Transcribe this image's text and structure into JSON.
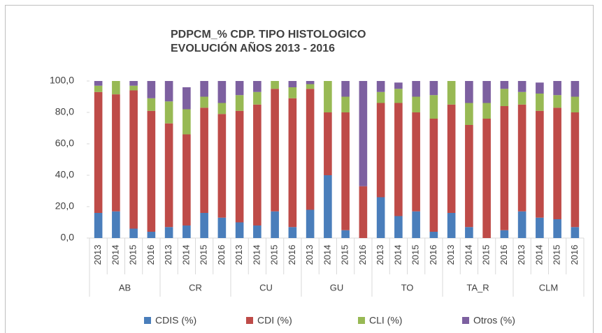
{
  "chart_data": {
    "type": "stacked_bar",
    "title_lines": [
      "PDPCM_% CDP. TIPO HISTOLOGICO",
      "EVOLUCIÓN AÑOS 2013 - 2016"
    ],
    "categories": [
      "2013",
      "2014",
      "2015",
      "2016",
      "2013",
      "2014",
      "2015",
      "2016",
      "2013",
      "2014",
      "2015",
      "2016",
      "2013",
      "2014",
      "2015",
      "2016",
      "2013",
      "2014",
      "2015",
      "2016",
      "2013",
      "2014",
      "2015",
      "2016",
      "2013",
      "2014",
      "2015",
      "2016"
    ],
    "groups": [
      "AB",
      "CR",
      "CU",
      "GU",
      "TO",
      "TA_R",
      "CLM"
    ],
    "series": [
      {
        "name": "CDIS (%)",
        "color": "#4a7ebb",
        "values": [
          16,
          17,
          6,
          4,
          7,
          8,
          16,
          13,
          10,
          8,
          17,
          7,
          18,
          40,
          5,
          0,
          26,
          14,
          17,
          4,
          16,
          7,
          0,
          5,
          17,
          13,
          12,
          7
        ]
      },
      {
        "name": "CDI (%)",
        "color": "#be4b48",
        "values": [
          77,
          74.5,
          88,
          77,
          66,
          58,
          67,
          66,
          71,
          77,
          78,
          82,
          77,
          40,
          75,
          33,
          60,
          72,
          63,
          72,
          69,
          65,
          76,
          79,
          68,
          68,
          71,
          73
        ]
      },
      {
        "name": "CLI (%)",
        "color": "#98b954",
        "values": [
          4,
          8.5,
          3,
          8,
          14,
          16,
          7,
          7,
          10,
          8,
          5,
          7,
          3,
          20,
          10,
          0,
          7,
          9,
          10,
          15,
          15,
          14,
          10,
          11,
          8,
          11,
          8,
          10
        ]
      },
      {
        "name": "Otros (%)",
        "color": "#7d60a0",
        "values": [
          3,
          0,
          3,
          11,
          13,
          14,
          10,
          14,
          9,
          7,
          0,
          4,
          2,
          0,
          10,
          67,
          7,
          4,
          10,
          9,
          0,
          14,
          14,
          5,
          7,
          7,
          9,
          10
        ]
      }
    ],
    "ylim": [
      0,
      100
    ],
    "yticks": [
      {
        "value": 0,
        "label": "0,0"
      },
      {
        "value": 20,
        "label": "20,0"
      },
      {
        "value": 40,
        "label": "40,0"
      },
      {
        "value": 60,
        "label": "60,0"
      },
      {
        "value": 80,
        "label": "80,0"
      },
      {
        "value": 100,
        "label": "100,0"
      }
    ],
    "legend": "bottom"
  }
}
